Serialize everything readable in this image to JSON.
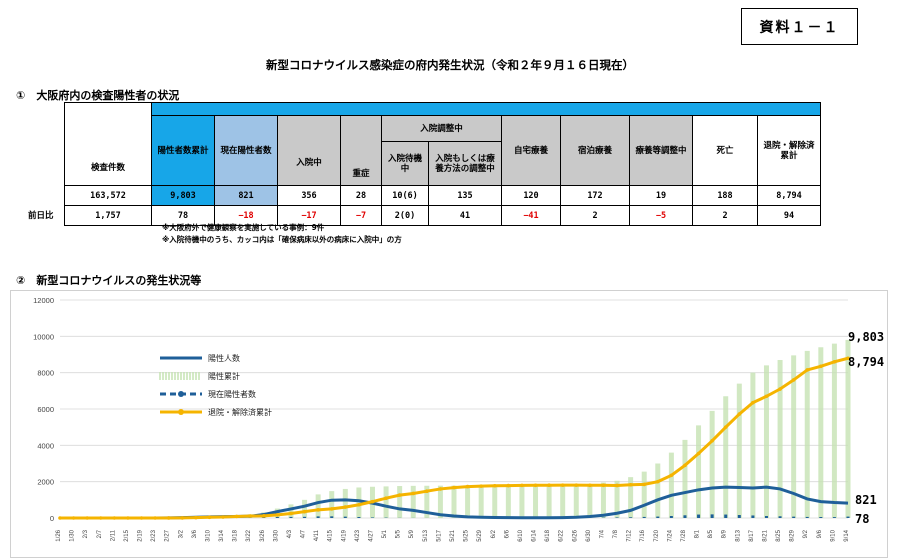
{
  "doc_id": "資料１－１",
  "title": "新型コロナウイルス感染症の府内発生状況（令和２年９月１６日現在）",
  "section1": "①　大阪府内の検査陽性者の状況",
  "section2": "②　新型コロナウイルスの発生状況等",
  "table": {
    "h_tests": "検査件数",
    "h_cum_pos": "陽性者数累計",
    "h_current": "現在陽性者数",
    "h_hosp": "入院中",
    "h_severe": "重症",
    "h_adjust": "入院調整中",
    "h_wait": "入院待機中",
    "h_or_method": "入院もしくは療養方法の調整中",
    "h_home": "自宅療養",
    "h_hotel": "宿泊療養",
    "h_recup_adj": "療養等調整中",
    "h_death": "死亡",
    "h_recovered": "退院・解除済累計",
    "row_prev_label": "前日比",
    "row_total": [
      "163,572",
      "9,803",
      "821",
      "356",
      "28",
      "10(6)",
      "135",
      "120",
      "172",
      "19",
      "188",
      "8,794"
    ],
    "row_prev": [
      "1,757",
      "78",
      "−18",
      "−17",
      "−7",
      "2(0)",
      "41",
      "−41",
      "2",
      "−5",
      "2",
      "94"
    ]
  },
  "notes": [
    "※大阪府外で健康観察を実施している事例：9件",
    "※入院待機中のうち、カッコ内は「確保病床以外の病床に入院中」の方"
  ],
  "chart_data": {
    "type": "line",
    "x_ticks": [
      "1/26",
      "1/30",
      "2/3",
      "2/7",
      "2/11",
      "2/15",
      "2/19",
      "2/23",
      "2/27",
      "3/2",
      "3/6",
      "3/10",
      "3/14",
      "3/18",
      "3/22",
      "3/26",
      "3/30",
      "4/3",
      "4/7",
      "4/11",
      "4/15",
      "4/19",
      "4/23",
      "4/27",
      "5/1",
      "5/5",
      "5/9",
      "5/13",
      "5/17",
      "5/21",
      "5/25",
      "5/29",
      "6/2",
      "6/6",
      "6/10",
      "6/14",
      "6/18",
      "6/22",
      "6/26",
      "6/30",
      "7/4",
      "7/8",
      "7/12",
      "7/16",
      "7/20",
      "7/24",
      "7/28",
      "8/1",
      "8/5",
      "8/9",
      "8/13",
      "8/17",
      "8/21",
      "8/25",
      "8/29",
      "9/2",
      "9/6",
      "9/10",
      "9/14"
    ],
    "y_ticks": [
      "0",
      "2000",
      "4000",
      "6000",
      "8000",
      "10000",
      "12000"
    ],
    "ylim": [
      0,
      12000
    ],
    "grid": true,
    "legend_position": "upper-left",
    "series": [
      {
        "name": "陽性人数",
        "style": "bars",
        "color": "#1f5f99",
        "values": [
          0,
          0,
          0,
          0,
          0,
          0,
          0,
          0,
          1,
          2,
          5,
          6,
          5,
          8,
          12,
          28,
          55,
          60,
          65,
          90,
          92,
          75,
          55,
          30,
          20,
          8,
          5,
          3,
          2,
          1,
          1,
          1,
          1,
          1,
          2,
          2,
          2,
          3,
          5,
          10,
          20,
          30,
          40,
          60,
          80,
          110,
          150,
          190,
          200,
          190,
          165,
          140,
          110,
          95,
          75,
          60,
          55,
          50,
          78
        ]
      },
      {
        "name": "陽性累計",
        "style": "area-bars",
        "color": "#c6e3b3",
        "values": [
          0,
          1,
          1,
          1,
          1,
          1,
          1,
          1,
          8,
          25,
          60,
          100,
          130,
          170,
          210,
          310,
          520,
          750,
          1000,
          1300,
          1480,
          1600,
          1680,
          1720,
          1740,
          1760,
          1770,
          1775,
          1780,
          1785,
          1790,
          1795,
          1800,
          1805,
          1810,
          1815,
          1820,
          1830,
          1850,
          1880,
          1950,
          2050,
          2250,
          2550,
          3000,
          3600,
          4300,
          5100,
          5900,
          6700,
          7400,
          8000,
          8400,
          8700,
          8950,
          9200,
          9400,
          9600,
          9803
        ]
      },
      {
        "name": "現在陽性者数",
        "style": "dashed",
        "color": "#1f5f99",
        "values": [
          0,
          1,
          1,
          1,
          1,
          1,
          1,
          1,
          7,
          20,
          40,
          60,
          75,
          85,
          100,
          190,
          350,
          500,
          650,
          850,
          980,
          1000,
          950,
          820,
          650,
          500,
          420,
          300,
          180,
          110,
          60,
          40,
          25,
          20,
          15,
          15,
          15,
          20,
          40,
          80,
          150,
          260,
          420,
          700,
          1000,
          1250,
          1400,
          1550,
          1650,
          1700,
          1680,
          1650,
          1700,
          1600,
          1350,
          1050,
          900,
          850,
          821
        ]
      },
      {
        "name": "退院・解除済累計",
        "style": "line-markers",
        "color": "#f5b400",
        "values": [
          0,
          0,
          0,
          0,
          0,
          0,
          0,
          0,
          1,
          5,
          20,
          40,
          55,
          85,
          110,
          120,
          170,
          250,
          350,
          450,
          500,
          600,
          730,
          900,
          1090,
          1260,
          1350,
          1475,
          1600,
          1675,
          1730,
          1755,
          1775,
          1785,
          1795,
          1800,
          1805,
          1810,
          1810,
          1800,
          1800,
          1790,
          1830,
          1850,
          2000,
          2350,
          2900,
          3550,
          4250,
          5000,
          5720,
          6350,
          6700,
          7100,
          7600,
          8150,
          8350,
          8600,
          8794
        ]
      }
    ],
    "annotations": [
      "9,803",
      "8,794",
      "821",
      "78"
    ]
  }
}
